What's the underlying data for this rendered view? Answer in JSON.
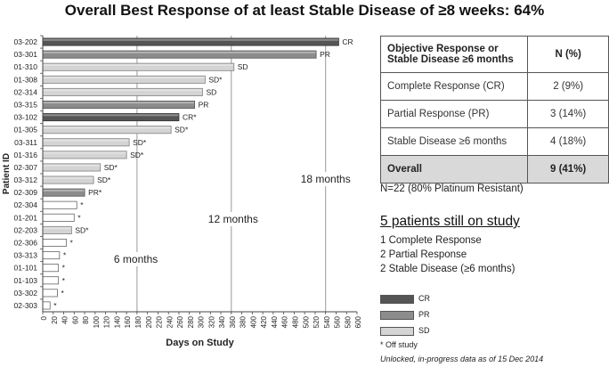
{
  "chart_data": {
    "type": "bar",
    "orientation": "horizontal",
    "title": "Overall Best Response of at least Stable Disease of ≥8 weeks: 64%",
    "xlabel": "Days on Study",
    "ylabel": "Patient ID",
    "xlim": [
      0,
      600
    ],
    "xticks": [
      0,
      20,
      40,
      60,
      80,
      100,
      120,
      140,
      160,
      180,
      200,
      220,
      240,
      260,
      280,
      300,
      320,
      340,
      360,
      380,
      400,
      420,
      440,
      460,
      480,
      500,
      520,
      540,
      560,
      580,
      600
    ],
    "reference_lines": [
      {
        "x": 180,
        "label": "6 months"
      },
      {
        "x": 360,
        "label": "12 months"
      },
      {
        "x": 540,
        "label": "18 months"
      }
    ],
    "categories": [
      "03-202",
      "03-301",
      "01-310",
      "01-308",
      "02-314",
      "03-315",
      "03-102",
      "01-305",
      "03-311",
      "01-316",
      "02-307",
      "03-312",
      "02-309",
      "02-304",
      "01-201",
      "02-203",
      "02-306",
      "03-313",
      "01-101",
      "01-103",
      "03-302",
      "02-303"
    ],
    "values": [
      565,
      522,
      365,
      310,
      305,
      290,
      260,
      245,
      165,
      160,
      110,
      97,
      80,
      65,
      60,
      55,
      45,
      32,
      30,
      30,
      28,
      14
    ],
    "responses": [
      "CR",
      "PR",
      "SD",
      "SD",
      "SD",
      "PR",
      "CR",
      "SD",
      "SD",
      "SD",
      "SD",
      "SD",
      "PR",
      "",
      "",
      "SD",
      "",
      "",
      "",
      "",
      "",
      ""
    ],
    "off_study": [
      false,
      false,
      false,
      true,
      false,
      false,
      true,
      true,
      true,
      true,
      true,
      true,
      true,
      true,
      true,
      true,
      true,
      true,
      true,
      true,
      true,
      true
    ],
    "bar_labels": [
      "CR",
      "PR",
      "SD",
      "SD*",
      "SD",
      "PR",
      "CR*",
      "SD*",
      "SD*",
      "SD*",
      "SD*",
      "SD*",
      "PR*",
      "*",
      "*",
      "SD*",
      "*",
      "*",
      "*",
      "*",
      "*",
      "*"
    ],
    "legend": [
      "CR",
      "PR",
      "SD"
    ]
  },
  "colors": {
    "CR": "#555555",
    "PR": "#8c8c8c",
    "SD": "#d4d4d4",
    "none": "#ffffff"
  },
  "table": {
    "header_label": "Objective Response or Stable Disease ≥6 months",
    "header_pct": "N (%)",
    "rows": [
      {
        "label": "Complete Response (CR)",
        "pct": "2 (9%)"
      },
      {
        "label": "Partial Response (PR)",
        "pct": "3 (14%)"
      },
      {
        "label": "Stable Disease ≥6 months",
        "pct": "4 (18%)"
      }
    ],
    "overall_label": "Overall",
    "overall_pct": "9 (41%)"
  },
  "note_n": "N=22 (80% Platinum Resistant)",
  "still_on_study": {
    "title": "5 patients still on study",
    "lines": [
      "1 Complete Response",
      "2 Partial Response",
      "2 Stable Disease (≥6 months)"
    ]
  },
  "off_study_note": "* Off study",
  "data_note": "Unlocked, in-progress data as of 15 Dec 2014"
}
